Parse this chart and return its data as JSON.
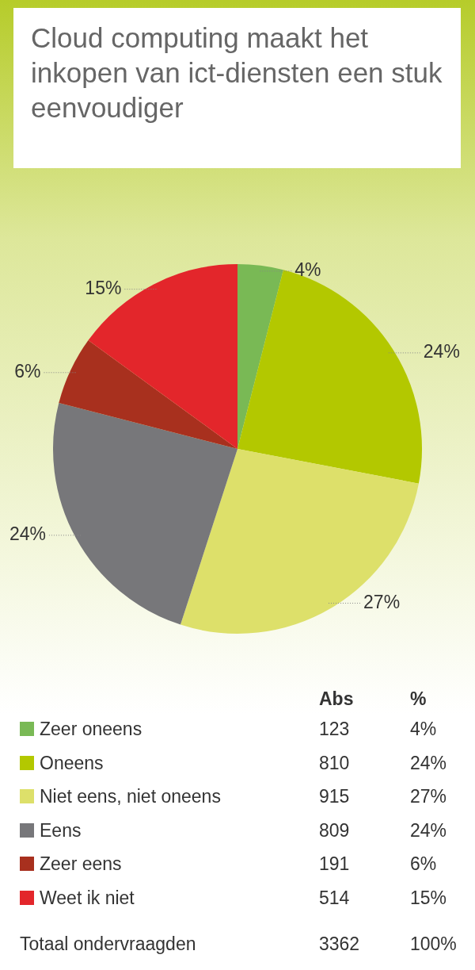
{
  "chart_data": {
    "type": "pie",
    "title": "Cloud computing maakt het inkopen van ict-diensten een stuk eenvoudiger",
    "categories": [
      "Zeer oneens",
      "Oneens",
      "Niet eens, niet oneens",
      "Eens",
      "Zeer eens",
      "Weet ik niet"
    ],
    "values": [
      4,
      24,
      27,
      24,
      6,
      15
    ],
    "value_labels": [
      "4%",
      "24%",
      "27%",
      "24%",
      "6%",
      "15%"
    ],
    "colors": [
      "#79b955",
      "#b3c800",
      "#dde06a",
      "#77777a",
      "#a8301e",
      "#e3262b"
    ],
    "legend": "bottom",
    "annotations": [
      "Abs",
      "%",
      "123",
      "810",
      "915",
      "809",
      "191",
      "514",
      "Totaal ondervraagden",
      "3362",
      "100%"
    ]
  }
}
